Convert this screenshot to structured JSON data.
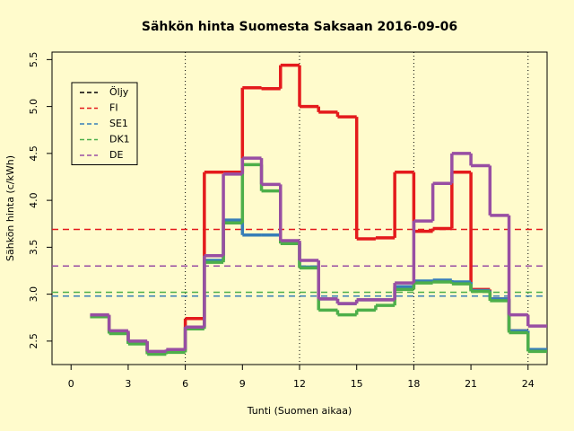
{
  "chart_data": {
    "type": "step",
    "title": "Sähkön hinta Suomesta Saksaan 2016-09-06",
    "xlabel": "Tunti (Suomen aikaa)",
    "ylabel": "Sähkön hinta (c/kWh)",
    "x": [
      1,
      2,
      3,
      4,
      5,
      6,
      7,
      8,
      9,
      10,
      11,
      12,
      13,
      14,
      15,
      16,
      17,
      18,
      19,
      20,
      21,
      22,
      23,
      24
    ],
    "xlim": [
      -1,
      25
    ],
    "xticks": [
      0,
      3,
      6,
      9,
      12,
      15,
      18,
      21,
      24
    ],
    "ylim": [
      2.25,
      5.58
    ],
    "yticks": [
      2.5,
      {
        "value": 3,
        "label": "3.0"
      },
      3.5,
      {
        "value": 4,
        "label": "4.0"
      },
      4.5,
      {
        "value": 5,
        "label": "5.0"
      },
      5.5
    ],
    "vlines": [
      6,
      12,
      18,
      24
    ],
    "series": [
      {
        "name": "Öljy",
        "color": "#000000",
        "values": [
          null,
          null,
          null,
          null,
          null,
          null,
          null,
          null,
          null,
          null,
          null,
          null,
          null,
          null,
          null,
          null,
          null,
          null,
          null,
          null,
          null,
          null,
          null,
          null
        ]
      },
      {
        "name": "FI",
        "color": "#e41a1c",
        "mean": 3.69,
        "values": [
          2.77,
          2.6,
          2.49,
          2.38,
          2.4,
          2.74,
          4.3,
          4.3,
          5.2,
          5.19,
          5.44,
          5.0,
          4.94,
          4.89,
          3.59,
          3.6,
          4.3,
          3.67,
          3.7,
          4.3,
          3.05,
          2.95,
          2.61,
          2.41
        ]
      },
      {
        "name": "SE1",
        "color": "#377eb8",
        "mean": 2.98,
        "values": [
          2.76,
          2.59,
          2.48,
          2.38,
          2.4,
          2.65,
          3.36,
          3.79,
          3.63,
          3.63,
          3.55,
          3.29,
          2.95,
          2.9,
          2.94,
          2.94,
          3.08,
          3.14,
          3.15,
          3.13,
          3.04,
          2.95,
          2.61,
          2.41
        ]
      },
      {
        "name": "DK1",
        "color": "#4daf4a",
        "mean": 3.02,
        "values": [
          2.76,
          2.58,
          2.47,
          2.36,
          2.38,
          2.63,
          3.34,
          3.76,
          4.38,
          4.1,
          3.54,
          3.28,
          2.83,
          2.78,
          2.83,
          2.88,
          3.05,
          3.12,
          3.13,
          3.11,
          3.03,
          2.93,
          2.59,
          2.39
        ]
      },
      {
        "name": "DE",
        "color": "#984ea3",
        "mean": 3.3,
        "values": [
          2.78,
          2.61,
          2.5,
          2.39,
          2.41,
          2.65,
          3.41,
          4.28,
          4.45,
          4.17,
          3.57,
          3.36,
          2.95,
          2.9,
          2.94,
          2.94,
          3.12,
          3.78,
          4.18,
          4.5,
          4.37,
          3.84,
          2.78,
          2.66
        ]
      }
    ]
  }
}
